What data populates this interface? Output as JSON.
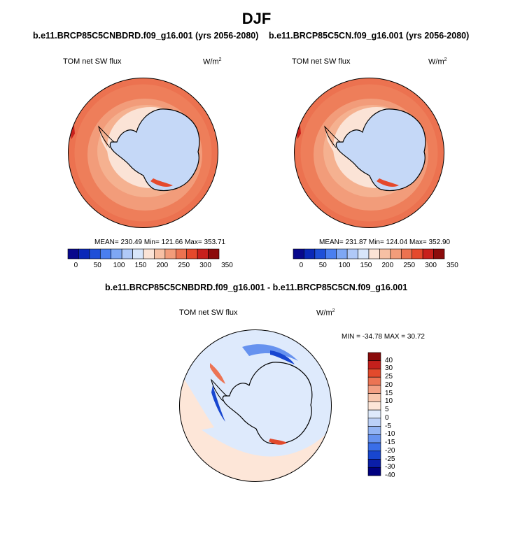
{
  "header": {
    "title": "DJF"
  },
  "colors": {
    "abs_scale": [
      "#08088c",
      "#0a28b8",
      "#1e4fd8",
      "#4a7ff0",
      "#7ea7f4",
      "#b0c9f8",
      "#d8e6fb",
      "#fbe3d6",
      "#f7c0a4",
      "#f29c7a",
      "#ec7250",
      "#e5492c",
      "#c8201c",
      "#8c0c0c"
    ],
    "diff_scale": [
      "#00007f",
      "#0a1ea8",
      "#1846d0",
      "#3a6ee8",
      "#6692ef",
      "#93b4f4",
      "#bcd1f8",
      "#deeafc",
      "#fde6d8",
      "#f8c7ae",
      "#f3a084",
      "#ec7454",
      "#e24a2c",
      "#c4201c",
      "#8a0a0a"
    ],
    "land": "#c5d8f7",
    "coast": "#000000"
  },
  "panels": [
    {
      "title": "b.e11.BRCP85C5CNBDRD.f09_g16.001 (yrs 2056-2080)",
      "variable": "TOM net SW flux",
      "units": "W/m",
      "units_sup": "2",
      "stats": "MEAN= 230.49  Min= 121.66  Max= 353.71"
    },
    {
      "title": "b.e11.BRCP85C5CN.f09_g16.001 (yrs 2056-2080)",
      "variable": "TOM net SW flux",
      "units": "W/m",
      "units_sup": "2",
      "stats": "MEAN= 231.87  Min= 124.04  Max= 352.90"
    }
  ],
  "abs_colorbar": {
    "labels": [
      "0",
      "50",
      "100",
      "150",
      "200",
      "250",
      "300",
      "350"
    ]
  },
  "diff_panel": {
    "title": "b.e11.BRCP85C5CNBDRD.f09_g16.001 - b.e11.BRCP85C5CN.f09_g16.001",
    "variable": "TOM net SW flux",
    "units": "W/m",
    "units_sup": "2",
    "stats": "MIN = -34.78 MAX =  30.72"
  },
  "diff_colorbar": {
    "labels": [
      "40",
      "30",
      "25",
      "20",
      "15",
      "10",
      "5",
      "0",
      "-5",
      "-10",
      "-15",
      "-20",
      "-25",
      "-30",
      "-40"
    ]
  }
}
